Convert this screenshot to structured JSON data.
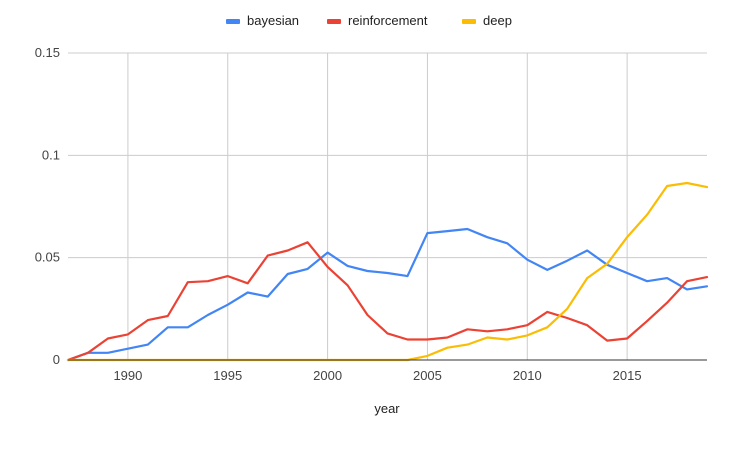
{
  "chart_data": {
    "type": "line",
    "title": "",
    "xlabel": "year",
    "ylabel": "",
    "xlim": [
      1987,
      2019
    ],
    "ylim": [
      0,
      0.15
    ],
    "x_ticks": [
      1990,
      1995,
      2000,
      2005,
      2010,
      2015
    ],
    "x_tick_labels": [
      "1990",
      "1995",
      "2000",
      "2005",
      "2010",
      "2015"
    ],
    "y_ticks": [
      0,
      0.05,
      0.1,
      0.15
    ],
    "y_tick_labels": [
      "0",
      "0.05",
      "0.1",
      "0.15"
    ],
    "grid": true,
    "legend_position": "top",
    "x": [
      1987,
      1988,
      1989,
      1990,
      1991,
      1992,
      1993,
      1994,
      1995,
      1996,
      1997,
      1998,
      1999,
      2000,
      2001,
      2002,
      2003,
      2004,
      2005,
      2006,
      2007,
      2008,
      2009,
      2010,
      2011,
      2012,
      2013,
      2014,
      2015,
      2016,
      2017,
      2018,
      2019
    ],
    "series": [
      {
        "name": "bayesian",
        "color": "#4285f4",
        "values": [
          0.0,
          0.0035,
          0.0035,
          0.0055,
          0.0075,
          0.016,
          0.016,
          0.022,
          0.027,
          0.033,
          0.031,
          0.042,
          0.0445,
          0.0525,
          0.046,
          0.0435,
          0.0425,
          0.041,
          0.062,
          0.063,
          0.064,
          0.06,
          0.057,
          0.049,
          0.044,
          0.0485,
          0.0535,
          0.0465,
          0.0425,
          0.0385,
          0.04,
          0.0345,
          0.036
        ]
      },
      {
        "name": "reinforcement",
        "color": "#ea4335",
        "values": [
          0.0,
          0.0035,
          0.0105,
          0.0125,
          0.0195,
          0.0215,
          0.038,
          0.0385,
          0.041,
          0.0375,
          0.051,
          0.0535,
          0.0575,
          0.0455,
          0.0365,
          0.022,
          0.013,
          0.01,
          0.01,
          0.011,
          0.015,
          0.014,
          0.015,
          0.017,
          0.0235,
          0.0205,
          0.017,
          0.0095,
          0.0105,
          0.019,
          0.028,
          0.0385,
          0.0405
        ]
      },
      {
        "name": "deep",
        "color": "#fbbc04",
        "values": [
          0,
          0,
          0,
          0,
          0,
          0,
          0,
          0,
          0,
          0,
          0,
          0,
          0,
          0,
          0,
          0,
          0,
          0,
          0.002,
          0.006,
          0.0075,
          0.011,
          0.01,
          0.012,
          0.016,
          0.025,
          0.04,
          0.047,
          0.06,
          0.071,
          0.085,
          0.0865,
          0.0845
        ]
      }
    ]
  }
}
